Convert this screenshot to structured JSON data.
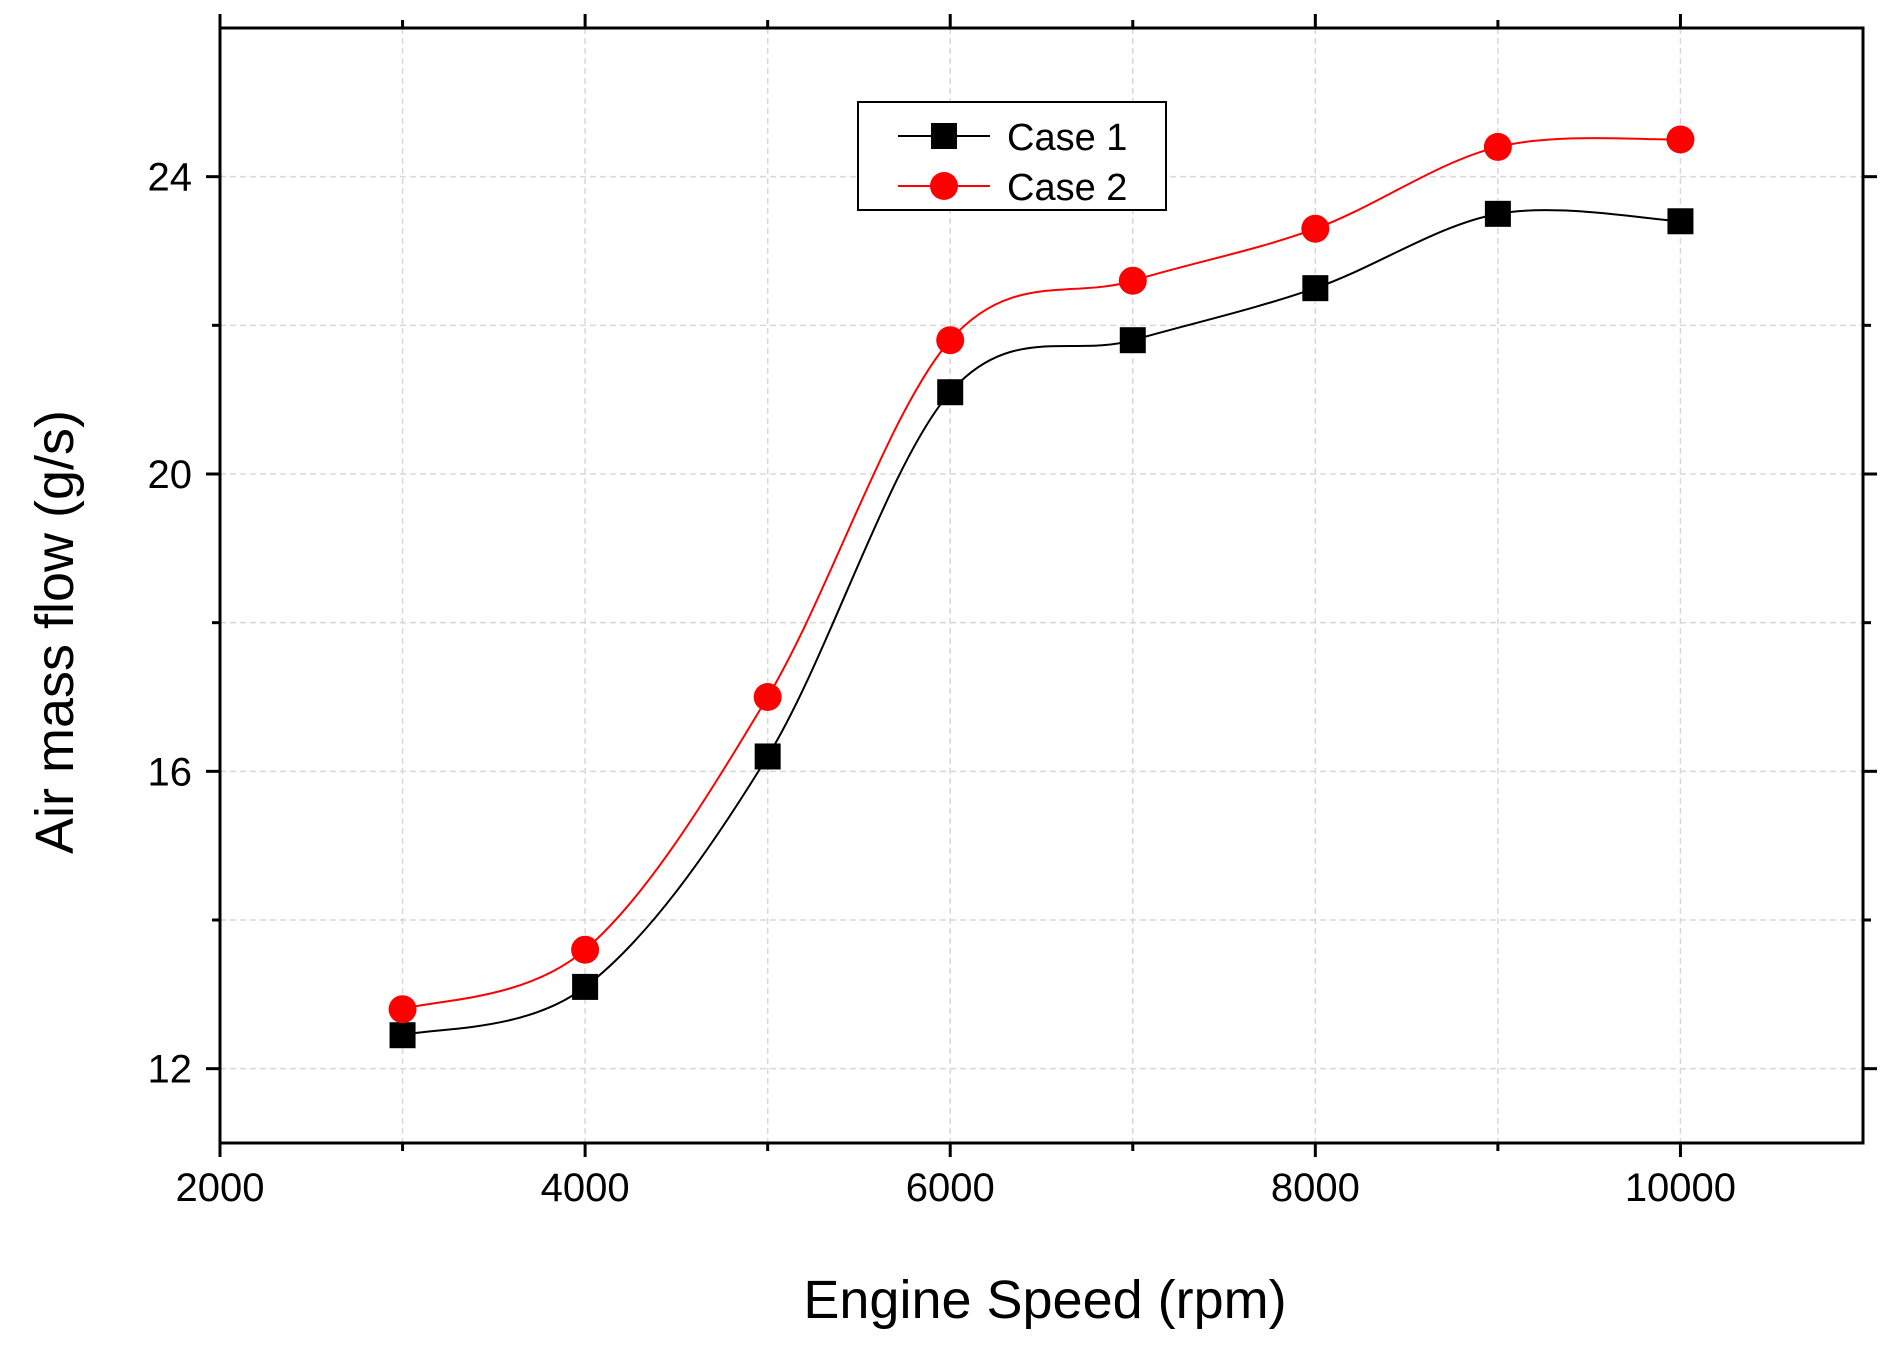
{
  "chart_data": {
    "type": "line",
    "xlabel": "Engine Speed (rpm)",
    "ylabel": "Air mass flow (g/s)",
    "xlim": [
      2000,
      11000
    ],
    "ylim": [
      11,
      26
    ],
    "xticks": [
      2000,
      4000,
      6000,
      8000,
      10000
    ],
    "xtick_labels": [
      "2000",
      "4000",
      "6000",
      "8000",
      "10000"
    ],
    "yticks": [
      12,
      16,
      20,
      24
    ],
    "ytick_labels": [
      "12",
      "16",
      "20",
      "24"
    ],
    "y_minor_ticks": [
      14,
      18,
      22
    ],
    "x_minor_ticks": [
      3000,
      5000,
      7000,
      9000
    ],
    "grid": true,
    "legend_position": "top-center",
    "x": [
      3000,
      4000,
      5000,
      6000,
      7000,
      8000,
      9000,
      10000
    ],
    "series": [
      {
        "name": "Case 1",
        "marker": "square",
        "color": "#000000",
        "values": [
          12.45,
          13.1,
          16.2,
          21.1,
          21.8,
          22.5,
          23.5,
          23.4
        ]
      },
      {
        "name": "Case 2",
        "marker": "circle",
        "color": "#ff0000",
        "values": [
          12.8,
          13.6,
          17.0,
          21.8,
          22.6,
          23.3,
          24.4,
          24.5
        ]
      }
    ]
  }
}
